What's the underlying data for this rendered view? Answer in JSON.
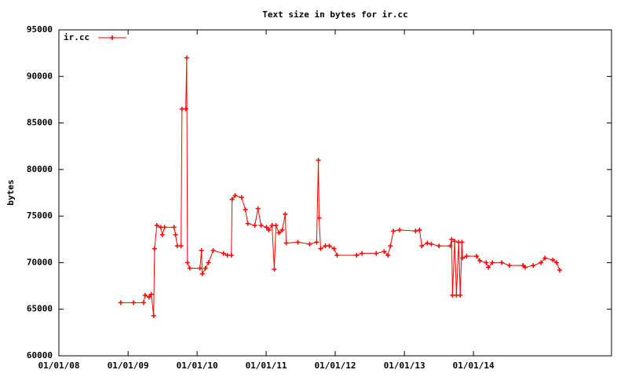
{
  "chart_data": {
    "type": "line",
    "title": "Text size in bytes for ir.cc",
    "y_label": "bytes",
    "legend": "top-left",
    "xlim": [
      "2008-01-01",
      "2016-01-01"
    ],
    "xticks": [
      {
        "value": "2008-01-01",
        "label": "01/01/08"
      },
      {
        "value": "2009-01-01",
        "label": "01/01/09"
      },
      {
        "value": "2010-01-01",
        "label": "01/01/10"
      },
      {
        "value": "2011-01-01",
        "label": "01/01/11"
      },
      {
        "value": "2012-01-01",
        "label": "01/01/12"
      },
      {
        "value": "2013-01-01",
        "label": "01/01/13"
      },
      {
        "value": "2014-01-01",
        "label": "01/01/14"
      }
    ],
    "ylim": [
      60000,
      95000
    ],
    "yticks": [
      60000,
      65000,
      70000,
      75000,
      80000,
      85000,
      90000,
      95000
    ],
    "x": [
      "2008-11-23",
      "2009-01-30",
      "2009-03-24",
      "2009-04-01",
      "2009-04-22",
      "2009-05-04",
      "2009-05-16",
      "2009-05-21",
      "2009-06-02",
      "2009-06-23",
      "2009-07-01",
      "2009-07-13",
      "2009-09-01",
      "2009-09-09",
      "2009-09-18",
      "2009-10-08",
      "2009-10-13",
      "2009-11-02",
      "2009-11-07",
      "2009-11-11",
      "2009-11-23",
      "2010-01-16",
      "2010-01-24",
      "2010-01-28",
      "2010-02-14",
      "2010-03-02",
      "2010-03-27",
      "2010-05-20",
      "2010-06-10",
      "2010-07-01",
      "2010-07-05",
      "2010-07-21",
      "2010-08-24",
      "2010-09-13",
      "2010-09-26",
      "2010-11-02",
      "2010-11-19",
      "2010-12-05",
      "2011-01-03",
      "2011-01-15",
      "2011-02-01",
      "2011-02-13",
      "2011-02-22",
      "2011-03-10",
      "2011-03-27",
      "2011-04-12",
      "2011-04-17",
      "2011-06-18",
      "2011-08-19",
      "2011-09-25",
      "2011-10-04",
      "2011-10-08",
      "2011-10-16",
      "2011-11-10",
      "2011-12-01",
      "2011-12-26",
      "2012-01-11",
      "2012-04-23",
      "2012-05-22",
      "2012-08-05",
      "2012-09-16",
      "2012-10-06",
      "2012-10-19",
      "2012-11-04",
      "2012-12-07",
      "2013-03-01",
      "2013-03-22",
      "2013-04-03",
      "2013-05-02",
      "2013-05-23",
      "2013-07-03",
      "2013-08-31",
      "2013-09-08",
      "2013-09-12",
      "2013-09-24",
      "2013-10-03",
      "2013-10-15",
      "2013-10-23",
      "2013-11-01",
      "2013-11-05",
      "2013-11-26",
      "2014-01-18",
      "2014-02-04",
      "2014-03-09",
      "2014-03-21",
      "2014-04-11",
      "2014-05-31",
      "2014-07-11",
      "2014-09-20",
      "2014-10-02",
      "2014-11-13",
      "2014-12-24",
      "2015-01-14",
      "2015-02-24",
      "2015-03-17",
      "2015-04-02"
    ],
    "series": [
      {
        "name": "ir.cc",
        "color": "#ff0000",
        "values": [
          65700,
          65700,
          65700,
          66500,
          66300,
          66600,
          64300,
          71500,
          74000,
          73800,
          73000,
          73800,
          73800,
          73000,
          71800,
          71800,
          86500,
          86500,
          92000,
          70000,
          69400,
          69400,
          71300,
          68800,
          69400,
          70000,
          71300,
          71000,
          70800,
          70800,
          76800,
          77200,
          77000,
          75700,
          74200,
          74000,
          75800,
          74000,
          73800,
          73500,
          74000,
          69300,
          74000,
          73200,
          73500,
          75200,
          72100,
          72200,
          72000,
          72200,
          81000,
          74800,
          71500,
          71800,
          71800,
          71500,
          70800,
          70800,
          71000,
          71000,
          71200,
          70800,
          71800,
          73400,
          73500,
          73400,
          73500,
          71800,
          72100,
          72000,
          71800,
          71800,
          72500,
          66500,
          72300,
          66500,
          72200,
          66500,
          72200,
          70500,
          70700,
          70700,
          70200,
          70000,
          69500,
          70000,
          70000,
          69700,
          69700,
          69500,
          69700,
          70000,
          70500,
          70300,
          70000,
          69200
        ]
      }
    ]
  }
}
